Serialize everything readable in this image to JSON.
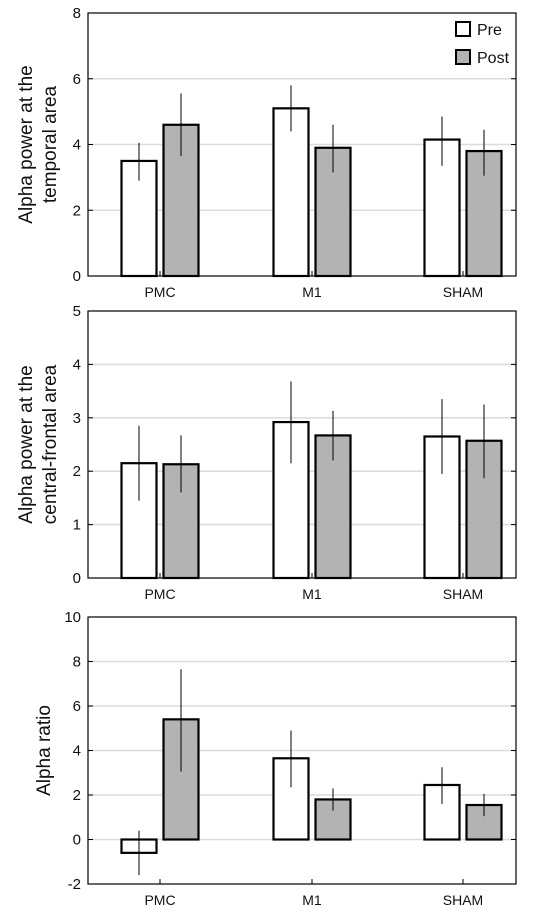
{
  "colors": {
    "pre": "#ffffff",
    "post": "#b3b3b3",
    "grid": "#dcdcdc",
    "stroke": "#000000"
  },
  "legend": [
    "Pre",
    "Post"
  ],
  "chart_data": [
    {
      "type": "bar",
      "ylabel": "Alpha power at the temporal area",
      "ylabel_lines": [
        "Alpha power at the",
        "temporal area"
      ],
      "xlabel": "",
      "categories": [
        "PMC",
        "M1",
        "SHAM"
      ],
      "ylim": [
        0,
        8
      ],
      "yticks": [
        0,
        2,
        4,
        6,
        8
      ],
      "grid": true,
      "legend_position": "top-right",
      "series": [
        {
          "name": "Pre",
          "values": [
            3.5,
            5.1,
            4.15
          ],
          "err_low": [
            2.9,
            4.4,
            3.35
          ],
          "err_high": [
            4.05,
            5.8,
            4.85
          ]
        },
        {
          "name": "Post",
          "values": [
            4.6,
            3.9,
            3.8
          ],
          "err_low": [
            3.65,
            3.15,
            3.05
          ],
          "err_high": [
            5.55,
            4.6,
            4.45
          ]
        }
      ]
    },
    {
      "type": "bar",
      "ylabel": "Alpha power at the central-frontal area",
      "ylabel_lines": [
        "Alpha power at the",
        "central-frontal area"
      ],
      "xlabel": "",
      "categories": [
        "PMC",
        "M1",
        "SHAM"
      ],
      "ylim": [
        0,
        5
      ],
      "yticks": [
        0,
        1,
        2,
        3,
        4,
        5
      ],
      "grid": true,
      "series": [
        {
          "name": "Pre",
          "values": [
            2.15,
            2.92,
            2.65
          ],
          "err_low": [
            1.45,
            2.15,
            1.95
          ],
          "err_high": [
            2.85,
            3.68,
            3.35
          ]
        },
        {
          "name": "Post",
          "values": [
            2.13,
            2.67,
            2.57
          ],
          "err_low": [
            1.6,
            2.2,
            1.87
          ],
          "err_high": [
            2.67,
            3.13,
            3.25
          ]
        }
      ]
    },
    {
      "type": "bar",
      "ylabel": "Alpha ratio",
      "ylabel_lines": [
        "Alpha ratio"
      ],
      "xlabel": "",
      "categories": [
        "PMC",
        "M1",
        "SHAM"
      ],
      "ylim": [
        -2,
        10
      ],
      "yticks": [
        -2,
        0,
        2,
        4,
        6,
        8,
        10
      ],
      "grid": true,
      "series": [
        {
          "name": "Pre",
          "values": [
            -0.6,
            3.65,
            2.45
          ],
          "err_low": [
            -1.6,
            2.35,
            1.6
          ],
          "err_high": [
            0.4,
            4.9,
            3.25
          ]
        },
        {
          "name": "Post",
          "values": [
            5.4,
            1.8,
            1.55
          ],
          "err_low": [
            3.05,
            1.3,
            1.05
          ],
          "err_high": [
            7.65,
            2.3,
            2.05
          ]
        }
      ]
    }
  ]
}
